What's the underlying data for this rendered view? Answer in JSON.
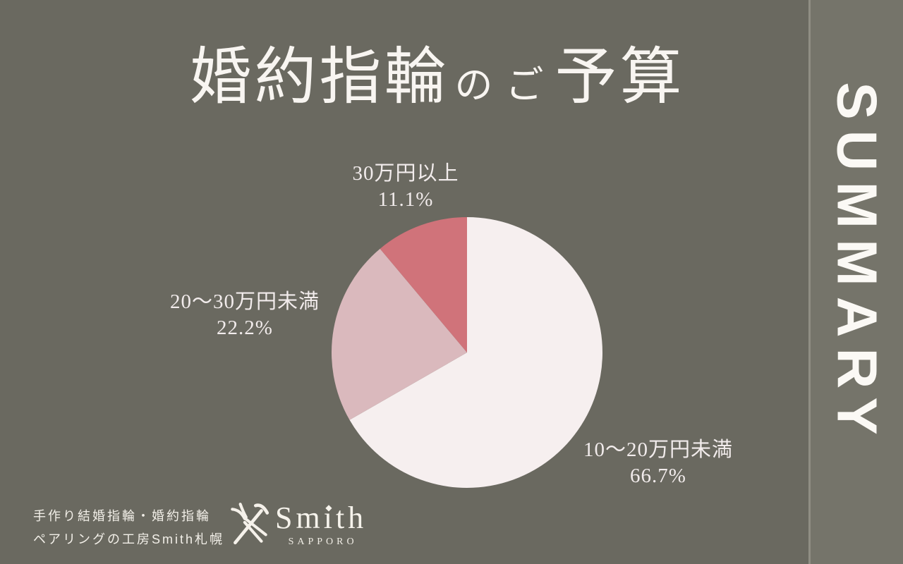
{
  "title": {
    "full": "婚約指輪のご予算",
    "part_main1": "婚約指輪",
    "part_small1": "の",
    "part_small2": "ご",
    "part_main2": "予算"
  },
  "sidebar": {
    "label": "SUMMARY"
  },
  "footer": {
    "tagline_line1": "手作り結婚指輪・婚約指輪",
    "tagline_line2": "ペアリングの工房Smith札幌",
    "brand_name": "Smith",
    "brand_name_pre": "Sm",
    "brand_name_i": "ı",
    "brand_name_post": "th",
    "brand_diamond_glyph": "◆",
    "brand_subtitle": "SAPPORO",
    "brand_icon": "crossed-jewelry-tools-icon"
  },
  "colors": {
    "background": "#6a6960",
    "sidebar_background": "#75746a",
    "divider": "#908e84",
    "title_text": "#f8f5f1",
    "label_text": "#f2ecec",
    "slice_cream": "#f6efef",
    "slice_pink": "#dab9bd",
    "slice_red": "#d0737a"
  },
  "chart_data": {
    "type": "pie",
    "title": "婚約指輪のご予算",
    "start_angle_deg": 0,
    "direction": "clockwise",
    "legend_position": "outside-labels",
    "series": [
      {
        "label": "10〜20万円未満",
        "value": 66.7,
        "value_label": "66.7%",
        "color": "#f6efef"
      },
      {
        "label": "20〜30万円未満",
        "value": 22.2,
        "value_label": "22.2%",
        "color": "#dab9bd"
      },
      {
        "label": "30万円以上",
        "value": 11.1,
        "value_label": "11.1%",
        "color": "#d0737a"
      }
    ]
  }
}
